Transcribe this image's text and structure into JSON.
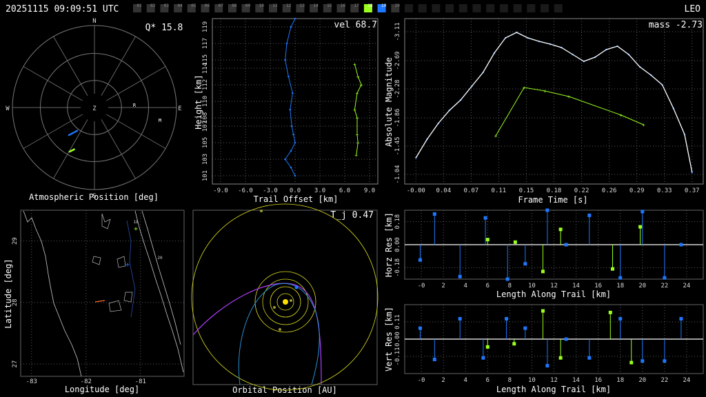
{
  "header": {
    "timestamp": "20251115 09:09:51 UTC",
    "orbit_class": "LEO",
    "camera_count": 32,
    "camera_active_green": 18,
    "camera_active_blue": 19,
    "camera_labels": [
      "01",
      "02",
      "03",
      "04",
      "05",
      "06",
      "07",
      "08",
      "09",
      "10",
      "11",
      "12",
      "13",
      "14",
      "15",
      "16",
      "17",
      "18",
      "19",
      "20"
    ]
  },
  "colors": {
    "blue": "#1e78ff",
    "green": "#9aff1e",
    "purple": "#b040ff",
    "yellow": "#e0e020",
    "grid": "#888888"
  },
  "chart_data": [
    {
      "id": "atmospheric",
      "type": "scatter",
      "xlabel": "Atmospheric Position [deg]",
      "stat_text": "Q* 15.8",
      "directions": [
        "N",
        "E",
        "S",
        "W",
        "Z"
      ],
      "station_markers": [
        "R",
        "M"
      ]
    },
    {
      "id": "trail",
      "type": "line",
      "stat_text": "vel 68.7",
      "xlabel": "Trail Offset [km]",
      "ylabel": "Height [km]",
      "xticks": [
        "-9.0",
        "-6.0",
        "-3.0",
        "0.0",
        "3.0",
        "6.0",
        "9.0"
      ],
      "xlim": [
        -10,
        10
      ],
      "yticks": [
        "101",
        "103",
        "105",
        "107",
        "108",
        "110",
        "112",
        "114",
        "115",
        "117",
        "119"
      ],
      "ylim": [
        100,
        120
      ],
      "series": [
        {
          "x": [
            0.0,
            -0.5,
            -1.0,
            -1.2,
            -0.8,
            -0.3,
            -0.6,
            -0.4,
            -0.2,
            0.0,
            -0.5,
            -1.2,
            -0.5,
            0.0
          ],
          "y": [
            120,
            119,
            117,
            115,
            113,
            111,
            109,
            107,
            106,
            105,
            104,
            103,
            102,
            101
          ]
        },
        {
          "x": [
            7.2,
            7.6,
            8.0,
            7.5,
            7.2,
            7.5,
            7.5,
            7.6,
            7.4
          ],
          "y": [
            114.5,
            113,
            112,
            111,
            109,
            108,
            106,
            105,
            103.5
          ]
        }
      ]
    },
    {
      "id": "magnitude",
      "type": "line",
      "stat_text": "mass -2.73",
      "xlabel": "Frame Time [s]",
      "ylabel": "Absolute Magnitude",
      "xticks": [
        "-0.00",
        "0.04",
        "0.07",
        "0.11",
        "0.15",
        "0.18",
        "0.22",
        "0.26",
        "0.29",
        "0.33",
        "0.37"
      ],
      "xlim": [
        -0.015,
        0.385
      ],
      "yticks": [
        "-1.04",
        "-1.45",
        "-1.86",
        "-2.28",
        "-2.69",
        "-3.11"
      ],
      "ylim": [
        -0.9,
        -3.3
      ],
      "series": [
        {
          "x": [
            0.0,
            0.015,
            0.03,
            0.045,
            0.06,
            0.075,
            0.09,
            0.105,
            0.12,
            0.135,
            0.15,
            0.165,
            0.18,
            0.195,
            0.21,
            0.225,
            0.24,
            0.255,
            0.27,
            0.285,
            0.3,
            0.315,
            0.33,
            0.345,
            0.36,
            0.37
          ],
          "y": [
            -1.28,
            -1.55,
            -1.78,
            -1.97,
            -2.12,
            -2.32,
            -2.52,
            -2.8,
            -3.02,
            -3.1,
            -3.02,
            -2.97,
            -2.93,
            -2.88,
            -2.78,
            -2.68,
            -2.74,
            -2.85,
            -2.9,
            -2.78,
            -2.6,
            -2.48,
            -2.34,
            -2.0,
            -1.62,
            -1.07
          ]
        },
        {
          "x": [
            0.107,
            0.145,
            0.173,
            0.205,
            0.275,
            0.305
          ],
          "y": [
            -1.6,
            -2.3,
            -2.25,
            -2.17,
            -1.9,
            -1.76
          ]
        }
      ]
    },
    {
      "id": "map",
      "type": "scatter",
      "xlabel": "Longitude [deg]",
      "ylabel": "Latitude [deg]",
      "xticks": [
        "-83",
        "-82",
        "-81"
      ],
      "yticks": [
        "27",
        "28",
        "29"
      ],
      "xlim": [
        -83.2,
        -80.2
      ],
      "ylim": [
        26.8,
        29.5
      ],
      "labels": [
        "18",
        "20"
      ]
    },
    {
      "id": "orbit",
      "type": "scatter",
      "stat_text": "T_j 0.47",
      "xlabel": "Orbital Position [AU]"
    },
    {
      "id": "horz",
      "type": "bar",
      "xlabel": "Length Along Trail [km]",
      "ylabel": "Horz Res [km]",
      "xticks": [
        "-0",
        "2",
        "4",
        "6",
        "8",
        "10",
        "12",
        "14",
        "16",
        "18",
        "20",
        "22",
        "24"
      ],
      "xlim": [
        -1.5,
        25.5
      ],
      "yticks": [
        "-0.18",
        "0.00",
        "0.18"
      ],
      "ylim": [
        -0.27,
        0.27
      ],
      "series": [
        {
          "x": [
            -0.1,
            1.2,
            3.5,
            5.8,
            7.8,
            9.4,
            11.4,
            13.1,
            15.2,
            18.0,
            20.0,
            22.0,
            23.5
          ],
          "y": [
            -0.12,
            0.24,
            -0.25,
            0.21,
            -0.28,
            -0.15,
            0.31,
            0.0,
            0.23,
            -0.26,
            0.26,
            -0.26,
            0.0
          ]
        },
        {
          "x": [
            6.0,
            8.5,
            11.0,
            12.6,
            17.3,
            19.8
          ],
          "y": [
            0.04,
            0.02,
            -0.21,
            0.12,
            -0.19,
            0.14
          ]
        }
      ]
    },
    {
      "id": "vert",
      "type": "bar",
      "xlabel": "Length Along Trail [km]",
      "ylabel": "Vert Res [km]",
      "xticks": [
        "-0",
        "2",
        "4",
        "6",
        "8",
        "10",
        "12",
        "14",
        "16",
        "18",
        "20",
        "22",
        "24"
      ],
      "xlim": [
        -1.5,
        25.5
      ],
      "yticks": [
        "-0.11",
        "0.00",
        "0.11"
      ],
      "ylim": [
        -0.22,
        0.22
      ],
      "series": [
        {
          "x": [
            -0.1,
            1.2,
            3.5,
            5.6,
            7.7,
            9.4,
            11.4,
            13.1,
            15.2,
            18.0,
            20.0,
            22.0,
            23.5
          ],
          "y": [
            0.07,
            -0.13,
            0.13,
            -0.12,
            0.13,
            0.07,
            -0.17,
            0.0,
            -0.12,
            0.13,
            -0.14,
            -0.14,
            0.13
          ]
        },
        {
          "x": [
            6.0,
            8.4,
            11.0,
            12.6,
            17.1,
            19.0
          ],
          "y": [
            -0.05,
            -0.03,
            0.18,
            -0.12,
            0.17,
            -0.15
          ]
        }
      ]
    }
  ]
}
